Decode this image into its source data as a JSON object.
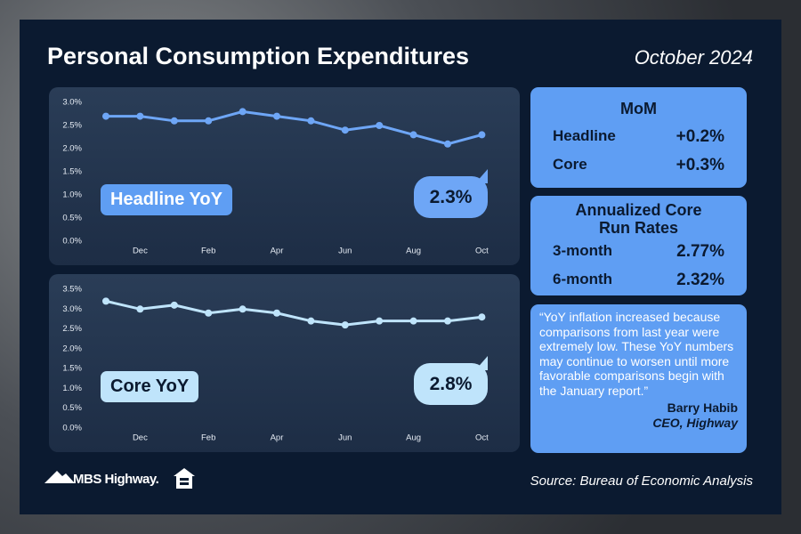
{
  "title": "Personal Consumption Expenditures",
  "date": "October 2024",
  "chart_data": [
    {
      "type": "line",
      "title": "Headline YoY",
      "categories": [
        null,
        "Dec",
        null,
        "Feb",
        null,
        "Apr",
        null,
        "Jun",
        null,
        "Aug",
        null,
        "Oct"
      ],
      "series": [
        {
          "name": "Headline YoY",
          "color": "#6ea6f6",
          "values": [
            2.7,
            2.7,
            2.6,
            2.6,
            2.8,
            2.7,
            2.6,
            2.4,
            2.5,
            2.3,
            2.1,
            2.3
          ],
          "value_labels": [
            null,
            null,
            null,
            null,
            null,
            null,
            null,
            null,
            null,
            null,
            null,
            "2.3%"
          ]
        }
      ],
      "ylim": [
        0,
        3
      ],
      "yticks": [
        {
          "value": 0,
          "label": "0.0%"
        },
        {
          "value": 0.5,
          "label": "0.5%"
        },
        {
          "value": 1,
          "label": "1.0%"
        },
        {
          "value": 1.5,
          "label": "1.5%"
        },
        {
          "value": 2,
          "label": "2.0%"
        },
        {
          "value": 2.5,
          "label": "2.5%"
        },
        {
          "value": 3,
          "label": "3.0%"
        }
      ],
      "grid": false
    },
    {
      "type": "line",
      "title": "Core YoY",
      "categories": [
        null,
        "Dec",
        null,
        "Feb",
        null,
        "Apr",
        null,
        "Jun",
        null,
        "Aug",
        null,
        "Oct"
      ],
      "series": [
        {
          "name": "Core YoY",
          "color": "#bfe4fb",
          "values": [
            3.2,
            3.0,
            3.1,
            2.9,
            3.0,
            2.9,
            2.7,
            2.6,
            2.7,
            2.7,
            2.7,
            2.8
          ],
          "value_labels": [
            null,
            null,
            null,
            null,
            null,
            null,
            null,
            null,
            null,
            null,
            null,
            "2.8%"
          ]
        }
      ],
      "ylim": [
        0,
        3.5
      ],
      "yticks": [
        {
          "value": 0,
          "label": "0.0%"
        },
        {
          "value": 0.5,
          "label": "0.5%"
        },
        {
          "value": 1,
          "label": "1.0%"
        },
        {
          "value": 1.5,
          "label": "1.5%"
        },
        {
          "value": 2,
          "label": "2.0%"
        },
        {
          "value": 2.5,
          "label": "2.5%"
        },
        {
          "value": 3,
          "label": "3.0%"
        },
        {
          "value": 3.5,
          "label": "3.5%"
        }
      ],
      "grid": false
    }
  ],
  "mom": {
    "title": "MoM",
    "rows": [
      [
        "Headline",
        "+0.2%"
      ],
      [
        "Core",
        "+0.3%"
      ]
    ]
  },
  "run_rates": {
    "title": "Annualized Core Run Rates",
    "rows": [
      [
        "3-month",
        "2.77%"
      ],
      [
        "6-month",
        "2.32%"
      ]
    ]
  },
  "quote": {
    "text": "“YoY inflation increased because comparisons from last year were extremely low. These YoY numbers may continue to worsen until more favorable comparisons begin with the January report.”",
    "author": "Barry Habib",
    "role": "CEO, Highway"
  },
  "footer": {
    "logo": "MBS Highway.",
    "source": "Source: Bureau of Economic Analysis"
  }
}
